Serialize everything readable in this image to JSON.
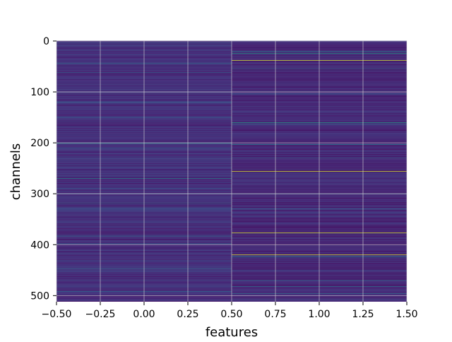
{
  "chart_data": {
    "type": "heatmap",
    "title": "",
    "xlabel": "features",
    "ylabel": "channels",
    "xlim": [
      -0.5,
      1.5
    ],
    "ylim": [
      512,
      0
    ],
    "x_ticks": [
      -0.5,
      -0.25,
      0.0,
      0.25,
      0.5,
      0.75,
      1.0,
      1.25,
      1.5
    ],
    "x_tick_labels": [
      "−0.50",
      "−0.25",
      "0.00",
      "0.25",
      "0.50",
      "0.75",
      "1.00",
      "1.25",
      "1.50"
    ],
    "y_ticks": [
      0,
      100,
      200,
      300,
      400,
      500
    ],
    "y_tick_labels": [
      "0",
      "100",
      "200",
      "300",
      "400",
      "500"
    ],
    "grid": true,
    "colormap": "viridis",
    "colors": {
      "low": "#440154",
      "mid_low": "#3b528b",
      "mid": "#21918c",
      "high": "#fde725",
      "grid": "#d8d8d8"
    },
    "columns": [
      {
        "feature": 0,
        "base_level": 0.08,
        "notable_channels": [
          {
            "channel": 44,
            "level": 0.35
          },
          {
            "channel": 62,
            "level": 0.3
          },
          {
            "channel": 120,
            "level": 0.3
          },
          {
            "channel": 150,
            "level": 0.28
          },
          {
            "channel": 201,
            "level": 0.45
          },
          {
            "channel": 210,
            "level": 0.3
          },
          {
            "channel": 270,
            "level": 0.45
          },
          {
            "channel": 290,
            "level": 0.3
          },
          {
            "channel": 318,
            "level": 0.35
          },
          {
            "channel": 330,
            "level": 0.3
          },
          {
            "channel": 383,
            "level": 0.32
          },
          {
            "channel": 398,
            "level": 0.32
          },
          {
            "channel": 447,
            "level": 0.35
          },
          {
            "channel": 492,
            "level": 0.32
          }
        ]
      },
      {
        "feature": 1,
        "base_level": 0.06,
        "notable_channels": [
          {
            "channel": 20,
            "level": 0.4
          },
          {
            "channel": 24,
            "level": 0.55
          },
          {
            "channel": 38,
            "level": 0.95
          },
          {
            "channel": 55,
            "level": 0.3
          },
          {
            "channel": 104,
            "level": 0.3
          },
          {
            "channel": 160,
            "level": 0.55
          },
          {
            "channel": 163,
            "level": 0.35
          },
          {
            "channel": 203,
            "level": 0.4
          },
          {
            "channel": 230,
            "level": 0.3
          },
          {
            "channel": 256,
            "level": 0.95
          },
          {
            "channel": 300,
            "level": 0.3
          },
          {
            "channel": 330,
            "level": 0.3
          },
          {
            "channel": 377,
            "level": 0.95
          },
          {
            "channel": 420,
            "level": 0.95
          },
          {
            "channel": 424,
            "level": 0.4
          },
          {
            "channel": 470,
            "level": 0.35
          },
          {
            "channel": 482,
            "level": 0.35
          },
          {
            "channel": 496,
            "level": 0.35
          }
        ]
      }
    ]
  }
}
